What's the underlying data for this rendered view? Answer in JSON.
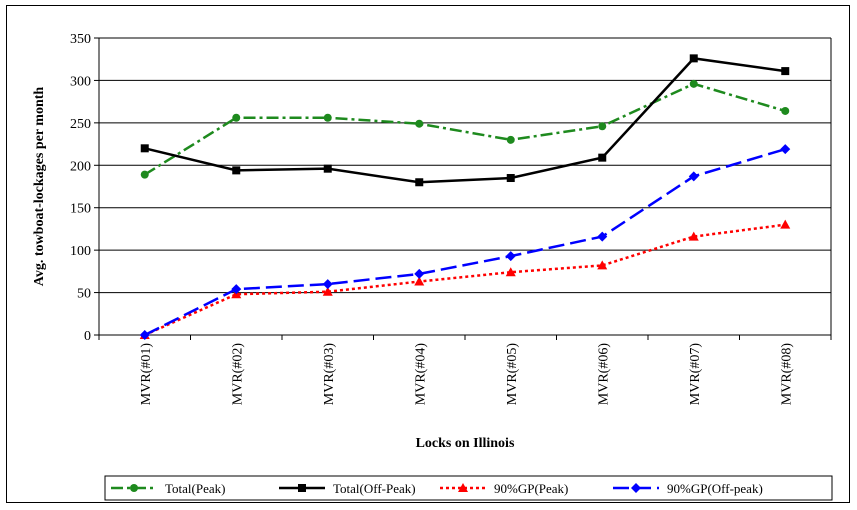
{
  "chart_data": {
    "type": "line",
    "xlabel": "Locks on Illinois",
    "ylabel": "Avg. towboat-lockages per month",
    "ylim": [
      0,
      350
    ],
    "yticks": [
      0,
      50,
      100,
      150,
      200,
      250,
      300,
      350
    ],
    "grid": "horizontal",
    "legend_position": "bottom",
    "categories": [
      "MVR(#01)",
      "MVR(#02)",
      "MVR(#03)",
      "MVR(#04)",
      "MVR(#05)",
      "MVR(#06)",
      "MVR(#07)",
      "MVR(#08)"
    ],
    "series": [
      {
        "name": "Total(Peak)",
        "values": [
          189,
          256,
          256,
          249,
          230,
          246,
          296,
          264
        ],
        "color": "#1e8a1e",
        "marker": "circle",
        "dash": "dash-dot"
      },
      {
        "name": "Total(Off-Peak)",
        "values": [
          220,
          194,
          196,
          180,
          185,
          209,
          326,
          311
        ],
        "color": "#000000",
        "marker": "square",
        "dash": "solid"
      },
      {
        "name": "90%GP(Peak)",
        "values": [
          0,
          48,
          51,
          63,
          74,
          82,
          116,
          130
        ],
        "color": "#ff0000",
        "marker": "triangle",
        "dash": "dotted"
      },
      {
        "name": "90%GP(Off-peak)",
        "values": [
          0,
          54,
          60,
          72,
          93,
          116,
          187,
          219
        ],
        "color": "#0000ff",
        "marker": "diamond",
        "dash": "long-dash"
      }
    ]
  }
}
